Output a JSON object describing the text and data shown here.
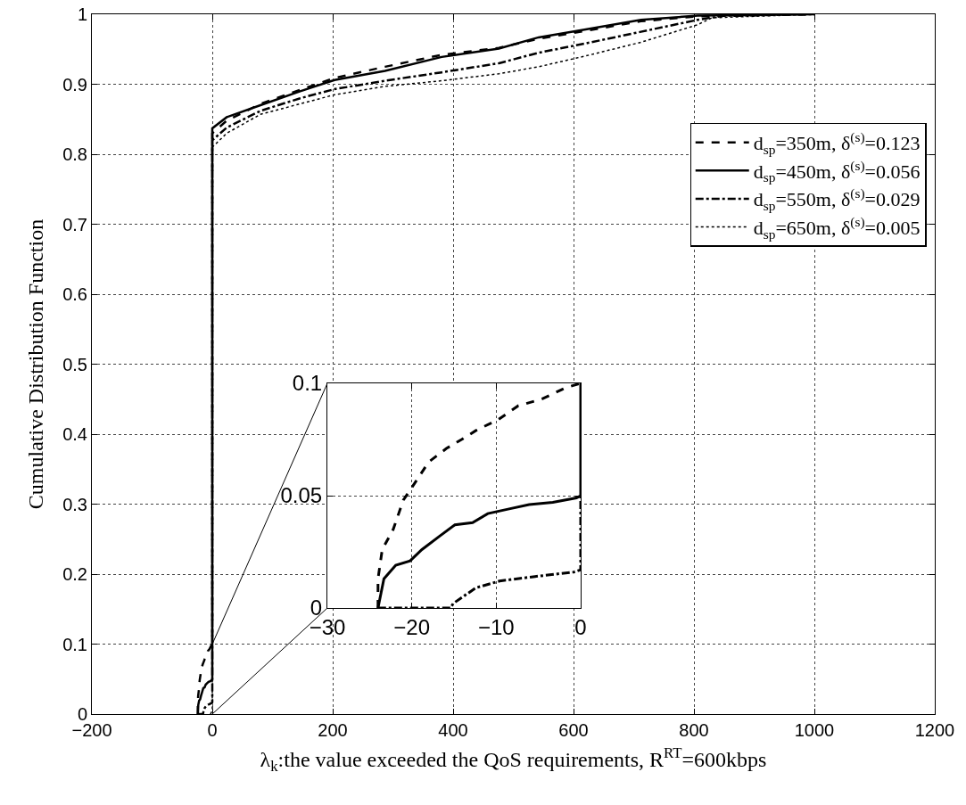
{
  "chart_data": [
    {
      "type": "line",
      "xlabel": "λ$_{k}$:the value exceeded the QoS requirements, R$^{RT}$=600kbps",
      "ylabel": "Cumulative Distribution Function",
      "xlim": [
        -200,
        1200
      ],
      "ylim": [
        0,
        1
      ],
      "xticks": [
        -200,
        0,
        200,
        400,
        600,
        800,
        1000,
        1200
      ],
      "yticks": [
        0,
        0.1,
        0.2,
        0.3,
        0.4,
        0.5,
        0.6,
        0.7,
        0.8,
        0.9,
        1
      ],
      "grid": true,
      "legend": "top right",
      "series": [
        {
          "name": "d$_{sp}$=350m, δ$^{(s)}$=0.123",
          "color": "#000000",
          "line_style": "dashed",
          "x": [
            -24,
            -24,
            -23.5,
            -22.2,
            -21,
            -19.4,
            -18,
            -15.9,
            -14.1,
            -12.4,
            -9.7,
            -7.4,
            -4.6,
            -1.8,
            0,
            0,
            24,
            80,
            146,
            203,
            287,
            381,
            476,
            542,
            618,
            712,
            806,
            1000
          ],
          "values": [
            0,
            0.013,
            0.026,
            0.035,
            0.048,
            0.057,
            0.065,
            0.071,
            0.075,
            0.079,
            0.084,
            0.09,
            0.093,
            0.098,
            0.1,
            0.83,
            0.848,
            0.872,
            0.892,
            0.909,
            0.925,
            0.942,
            0.952,
            0.965,
            0.976,
            0.99,
            0.997,
            1
          ]
        },
        {
          "name": "d$_{sp}$=450m, δ$^{(s)}$=0.056",
          "color": "#000000",
          "line_style": "solid",
          "x": [
            -24,
            -23.3,
            -21.9,
            -20.2,
            -18.8,
            -16.7,
            -14.9,
            -12.8,
            -11,
            -8.6,
            -6.1,
            -3.3,
            -0.5,
            0,
            0,
            24,
            80,
            146,
            203,
            287,
            381,
            476,
            542,
            618,
            712,
            806,
            1000
          ],
          "values": [
            0,
            0.013,
            0.019,
            0.021,
            0.026,
            0.032,
            0.037,
            0.038,
            0.042,
            0.044,
            0.046,
            0.047,
            0.049,
            0.05,
            0.837,
            0.853,
            0.87,
            0.89,
            0.906,
            0.919,
            0.939,
            0.951,
            0.967,
            0.978,
            0.992,
            0.998,
            1
          ]
        },
        {
          "name": "d$_{sp}$=550m, δ$^{(s)}$=0.029",
          "color": "#000000",
          "line_style": "dashdot",
          "x": [
            -24,
            -15.4,
            -15.1,
            -12.4,
            -9.6,
            -5.4,
            -0.8,
            0,
            0,
            24,
            80,
            146,
            203,
            287,
            381,
            476,
            542,
            618,
            712,
            806,
            850,
            1000
          ],
          "values": [
            0,
            0,
            0.002,
            0.009,
            0.012,
            0.014,
            0.016,
            0.017,
            0.82,
            0.838,
            0.862,
            0.88,
            0.893,
            0.905,
            0.917,
            0.93,
            0.945,
            0.958,
            0.975,
            0.992,
            0.998,
            1
          ]
        },
        {
          "name": "d$_{sp}$=650m, δ$^{(s)}$=0.005",
          "color": "#000000",
          "line_style": "dotted",
          "x": [
            -3,
            0,
            0,
            24,
            80,
            146,
            203,
            287,
            381,
            476,
            542,
            618,
            712,
            806,
            830,
            1000
          ],
          "values": [
            0,
            0.005,
            0.81,
            0.83,
            0.857,
            0.872,
            0.885,
            0.897,
            0.905,
            0.915,
            0.925,
            0.94,
            0.96,
            0.985,
            0.995,
            1
          ]
        }
      ]
    },
    {
      "type": "line",
      "xlim": [
        -30,
        0
      ],
      "ylim": [
        0,
        0.1
      ],
      "xticks": [
        -30,
        -20,
        -10,
        0
      ],
      "yticks": [
        0,
        0.05,
        0.1
      ],
      "grid": true,
      "series": [
        {
          "color": "#000000",
          "line_style": "dashed",
          "x": [
            -24,
            -24,
            -23.5,
            -22.2,
            -21,
            -19.4,
            -18,
            -15.9,
            -14.1,
            -12.4,
            -9.7,
            -7.4,
            -4.6,
            -1.8,
            0
          ],
          "values": [
            0,
            0.013,
            0.026,
            0.035,
            0.048,
            0.057,
            0.065,
            0.071,
            0.075,
            0.079,
            0.084,
            0.09,
            0.093,
            0.098,
            0.1
          ]
        },
        {
          "color": "#000000",
          "line_style": "solid",
          "x": [
            -24,
            -23.3,
            -21.9,
            -20.2,
            -18.8,
            -16.7,
            -14.9,
            -12.8,
            -11,
            -8.6,
            -6.1,
            -3.3,
            -0.5,
            0,
            0
          ],
          "values": [
            0,
            0.013,
            0.019,
            0.021,
            0.026,
            0.032,
            0.037,
            0.038,
            0.042,
            0.044,
            0.046,
            0.047,
            0.049,
            0.05,
            0.1
          ]
        },
        {
          "color": "#000000",
          "line_style": "dashdot",
          "x": [
            -24,
            -15.4,
            -15.1,
            -12.4,
            -9.6,
            -5.4,
            -0.8,
            0,
            0
          ],
          "values": [
            0,
            0,
            0.002,
            0.009,
            0.012,
            0.014,
            0.016,
            0.017,
            0.05
          ]
        }
      ]
    }
  ]
}
